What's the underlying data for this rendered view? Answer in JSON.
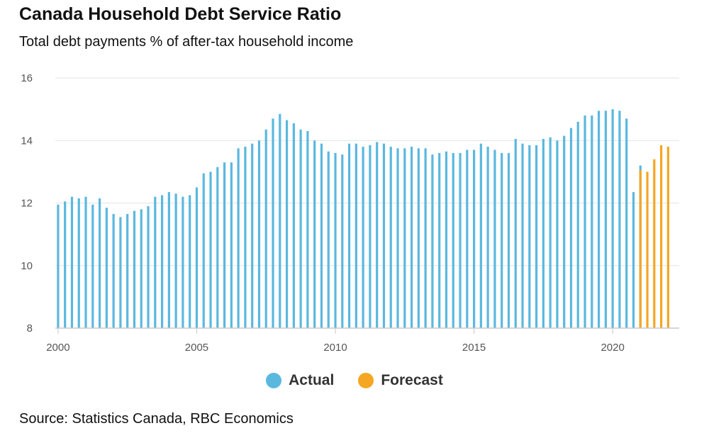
{
  "title": "Canada Household Debt Service Ratio",
  "subtitle": "Total debt payments % of after-tax household income",
  "source": "Source: Statistics Canada, RBC Economics",
  "colors": {
    "actual": "#5ab8df",
    "forecast": "#f5a623"
  },
  "legend": {
    "actual": "Actual",
    "forecast": "Forecast"
  },
  "chart_data": {
    "type": "bar",
    "x_start": 2000.0,
    "x_step": 0.25,
    "xlim": [
      1999.9,
      2022.4
    ],
    "ylim": [
      8,
      16
    ],
    "yticks": [
      8,
      10,
      12,
      14,
      16
    ],
    "xticks": [
      2000,
      2005,
      2010,
      2015,
      2020
    ],
    "grid": true,
    "legend_position": "bottom",
    "series": [
      {
        "name": "Actual",
        "start_index": 0,
        "values": [
          11.95,
          12.05,
          12.2,
          12.15,
          12.2,
          11.95,
          12.15,
          11.85,
          11.65,
          11.55,
          11.65,
          11.75,
          11.8,
          11.9,
          12.2,
          12.25,
          12.35,
          12.3,
          12.2,
          12.25,
          12.5,
          12.95,
          13.0,
          13.15,
          13.3,
          13.3,
          13.75,
          13.8,
          13.9,
          14.0,
          14.35,
          14.7,
          14.85,
          14.65,
          14.55,
          14.35,
          14.3,
          14.0,
          13.9,
          13.65,
          13.6,
          13.55,
          13.9,
          13.9,
          13.8,
          13.85,
          13.95,
          13.9,
          13.8,
          13.75,
          13.75,
          13.8,
          13.75,
          13.75,
          13.55,
          13.6,
          13.65,
          13.6,
          13.6,
          13.7,
          13.7,
          13.9,
          13.8,
          13.7,
          13.6,
          13.6,
          14.05,
          13.9,
          13.85,
          13.85,
          14.05,
          14.1,
          14.0,
          14.15,
          14.4,
          14.6,
          14.8,
          14.8,
          14.95,
          14.95,
          15.0,
          14.95,
          14.7,
          12.35,
          13.2
        ]
      },
      {
        "name": "Forecast",
        "start_index": 84,
        "values": [
          13.05,
          13.0,
          13.4,
          13.85,
          13.8
        ]
      }
    ]
  }
}
